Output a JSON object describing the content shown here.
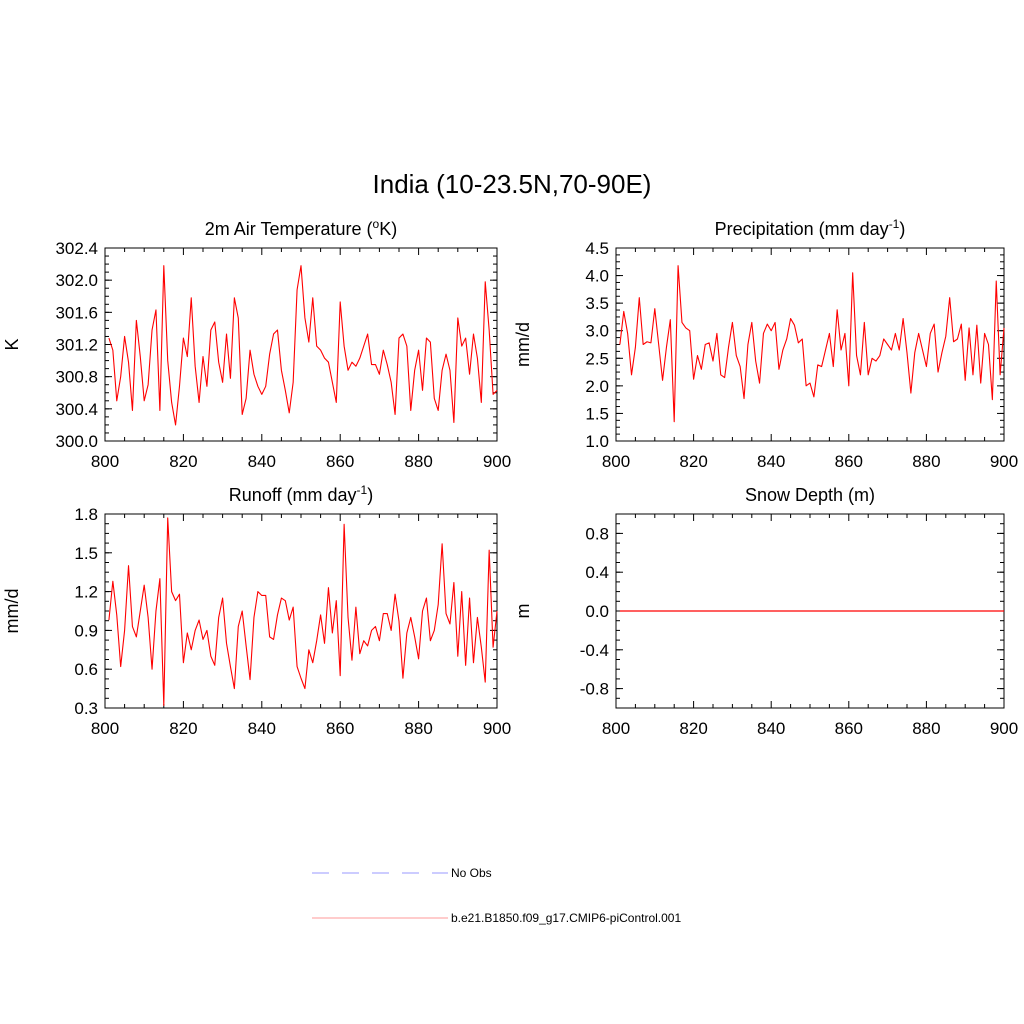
{
  "main_title": "India (10-23.5N,70-90E)",
  "colors": {
    "series": "#ff0000",
    "obs": "#9999ff",
    "axis": "#000000"
  },
  "chart_data": [
    {
      "type": "line",
      "id": "temp",
      "title": "2m Air Temperature (",
      "title_sup": "o",
      "title_tail": "K)",
      "ylabel": "K",
      "xlim": [
        800,
        900
      ],
      "ylim": [
        300.0,
        302.4
      ],
      "xticks": [
        "800",
        "820",
        "840",
        "860",
        "880",
        "900"
      ],
      "yticks": [
        "300.0",
        "300.4",
        "300.8",
        "301.2",
        "301.6",
        "302.0",
        "302.4"
      ],
      "x_start": 801,
      "values": [
        301.28,
        301.13,
        300.5,
        300.8,
        301.3,
        300.98,
        300.38,
        301.5,
        301.05,
        300.5,
        300.7,
        301.38,
        301.63,
        300.38,
        302.18,
        301.0,
        300.48,
        300.2,
        300.68,
        301.28,
        301.05,
        301.78,
        300.93,
        300.48,
        301.05,
        300.68,
        301.38,
        301.48,
        300.98,
        300.73,
        301.33,
        300.78,
        301.78,
        301.53,
        300.33,
        300.53,
        301.13,
        300.83,
        300.68,
        300.58,
        300.68,
        301.08,
        301.33,
        301.38,
        300.88,
        300.63,
        300.35,
        300.73,
        301.88,
        302.18,
        301.53,
        301.23,
        301.78,
        301.18,
        301.13,
        301.03,
        300.98,
        300.73,
        300.48,
        301.73,
        301.18,
        300.88,
        300.98,
        300.93,
        301.03,
        301.18,
        301.33,
        300.95,
        300.95,
        300.83,
        301.13,
        300.95,
        300.73,
        300.33,
        301.28,
        301.33,
        301.18,
        300.38,
        300.88,
        301.13,
        300.63,
        301.28,
        301.23,
        300.53,
        300.38,
        300.88,
        301.08,
        300.88,
        300.23,
        301.53,
        301.18,
        301.28,
        300.83,
        301.33,
        301.03,
        300.48,
        301.98,
        301.38,
        300.58,
        300.63
      ]
    },
    {
      "type": "line",
      "id": "precip",
      "title": "Precipitation (mm day",
      "title_sup": "-1",
      "title_tail": ")",
      "ylabel": "mm/d",
      "xlim": [
        800,
        900
      ],
      "ylim": [
        1.0,
        4.5
      ],
      "xticks": [
        "800",
        "820",
        "840",
        "860",
        "880",
        "900"
      ],
      "yticks": [
        "1.0",
        "1.5",
        "2.0",
        "2.5",
        "3.0",
        "3.5",
        "4.0",
        "4.5"
      ],
      "x_start": 801,
      "values": [
        2.75,
        3.35,
        2.95,
        2.2,
        2.7,
        3.6,
        2.75,
        2.8,
        2.78,
        3.4,
        2.75,
        2.1,
        2.7,
        3.2,
        1.35,
        4.18,
        3.15,
        3.05,
        3.0,
        2.12,
        2.55,
        2.3,
        2.75,
        2.78,
        2.45,
        2.95,
        2.2,
        2.15,
        2.7,
        3.15,
        2.55,
        2.35,
        1.77,
        2.75,
        3.15,
        2.45,
        2.05,
        2.95,
        3.12,
        3.0,
        3.15,
        2.3,
        2.65,
        2.85,
        3.22,
        3.1,
        2.78,
        2.85,
        2.0,
        2.05,
        1.8,
        2.38,
        2.35,
        2.65,
        2.95,
        2.35,
        3.38,
        2.65,
        2.95,
        2.0,
        4.05,
        2.55,
        2.2,
        3.15,
        2.2,
        2.5,
        2.45,
        2.55,
        2.85,
        2.75,
        2.65,
        2.95,
        2.65,
        3.22,
        2.6,
        1.87,
        2.6,
        2.95,
        2.65,
        2.35,
        2.95,
        3.12,
        2.25,
        2.6,
        2.9,
        3.6,
        2.8,
        2.85,
        3.12,
        2.1,
        3.05,
        2.2,
        3.1,
        2.05,
        2.95,
        2.75,
        1.75,
        3.9,
        2.2,
        3.05
      ]
    },
    {
      "type": "line",
      "id": "runoff",
      "title": "Runoff (mm day",
      "title_sup": "-1",
      "title_tail": ")",
      "ylabel": "mm/d",
      "xlim": [
        800,
        900
      ],
      "ylim": [
        0.3,
        1.8
      ],
      "xticks": [
        "800",
        "820",
        "840",
        "860",
        "880",
        "900"
      ],
      "yticks": [
        "0.3",
        "0.6",
        "0.9",
        "1.2",
        "1.5",
        "1.8"
      ],
      "x_start": 801,
      "values": [
        0.98,
        1.28,
        1.02,
        0.62,
        0.9,
        1.4,
        0.93,
        0.85,
        1.05,
        1.25,
        1.0,
        0.6,
        1.05,
        1.3,
        0.32,
        1.77,
        1.2,
        1.13,
        1.18,
        0.65,
        0.88,
        0.75,
        0.9,
        0.98,
        0.83,
        0.9,
        0.7,
        0.63,
        1.0,
        1.15,
        0.8,
        0.62,
        0.45,
        0.93,
        1.05,
        0.78,
        0.52,
        1.0,
        1.2,
        1.17,
        1.17,
        0.85,
        0.83,
        1.02,
        1.15,
        1.13,
        0.98,
        1.08,
        0.62,
        0.53,
        0.45,
        0.75,
        0.65,
        0.82,
        1.02,
        0.8,
        1.23,
        0.88,
        1.13,
        0.55,
        1.72,
        1.0,
        0.67,
        1.08,
        0.72,
        0.82,
        0.78,
        0.9,
        0.93,
        0.82,
        1.03,
        1.03,
        0.9,
        1.18,
        0.97,
        0.53,
        0.88,
        1.0,
        0.85,
        0.68,
        1.05,
        1.15,
        0.82,
        0.9,
        1.1,
        1.57,
        1.03,
        0.95,
        1.27,
        0.7,
        1.2,
        0.63,
        1.15,
        0.65,
        1.0,
        0.77,
        0.5,
        1.52,
        0.77,
        1.05
      ]
    },
    {
      "type": "line",
      "id": "snow",
      "title": "Snow Depth (m)",
      "title_sup": "",
      "title_tail": "",
      "ylabel": "m",
      "xlim": [
        800,
        900
      ],
      "ylim": [
        -1.0,
        1.0
      ],
      "xticks": [
        "800",
        "820",
        "840",
        "860",
        "880",
        "900"
      ],
      "yticks": [
        "-0.8",
        "-0.4",
        "0.0",
        "0.4",
        "0.8"
      ],
      "ytick_values": [
        -0.8,
        -0.4,
        0.0,
        0.4,
        0.8
      ],
      "x_start": 801,
      "constant_value": 0.0
    }
  ],
  "legend": {
    "items": [
      {
        "label": "No Obs",
        "style": "dashed"
      },
      {
        "label": "b.e21.B1850.f09_g17.CMIP6-piControl.001",
        "style": "solid"
      }
    ]
  }
}
